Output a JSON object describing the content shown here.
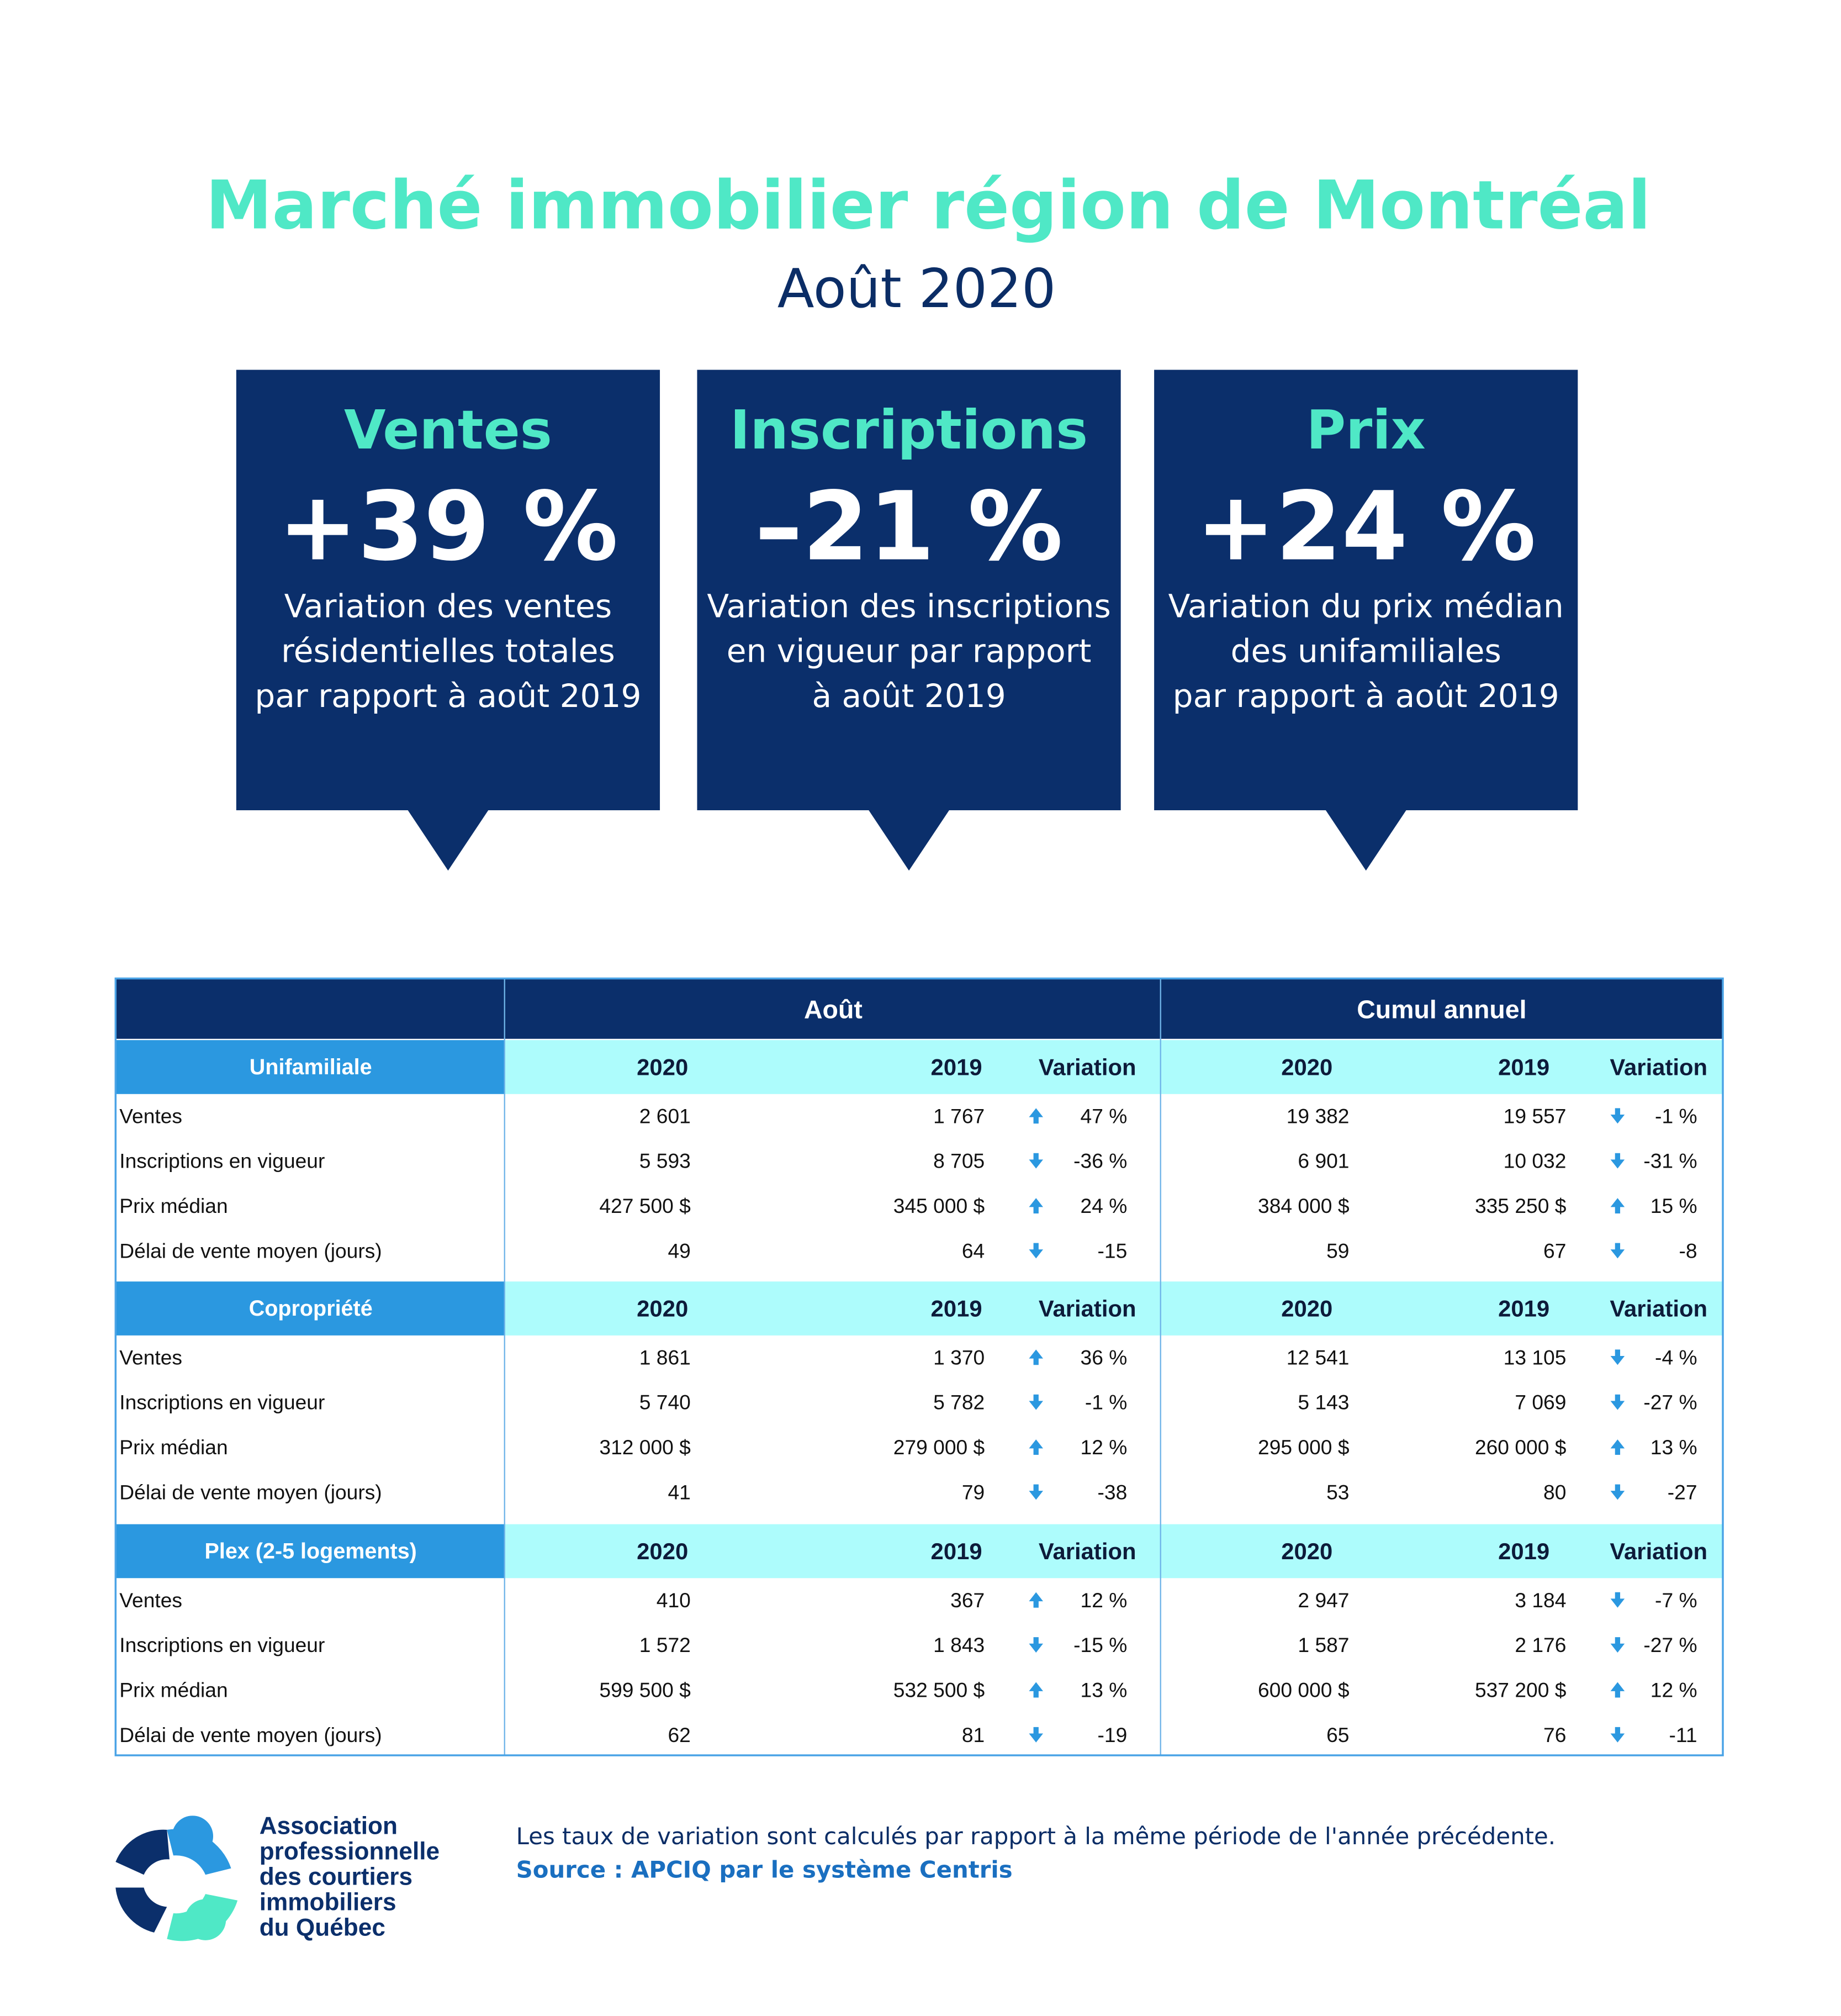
{
  "header": {
    "title": "Marché immobilier région de Montréal",
    "subtitle": "Août 2020"
  },
  "cards": [
    {
      "title": "Ventes",
      "value": "+39 %",
      "description": [
        "Variation des ventes",
        "résidentielles totales",
        "par rapport à août 2019"
      ]
    },
    {
      "title": "Inscriptions",
      "value": "–21 %",
      "description": [
        "Variation des inscriptions",
        "en vigueur par rapport",
        "à août 2019"
      ]
    },
    {
      "title": "Prix",
      "value": "+24 %",
      "description": [
        "Variation du prix médian",
        "des unifamiliales",
        "par rapport à août 2019"
      ]
    }
  ],
  "table": {
    "groups": [
      "Août",
      "Cumul annuel"
    ],
    "sections": [
      {
        "name": "Unifamiliale",
        "columns": [
          "2020",
          "2019",
          "Variation",
          "2020",
          "2019",
          "Variation"
        ],
        "rows": [
          {
            "label": "Ventes",
            "cells": [
              "2 601",
              "1 767",
              "47 %",
              "19 382",
              "19 557",
              "-1 %"
            ]
          },
          {
            "label": "Inscriptions en vigueur",
            "cells": [
              "5 593",
              "8 705",
              "-36 %",
              "6 901",
              "10 032",
              "-31 %"
            ]
          },
          {
            "label": "Prix médian",
            "cells": [
              "427 500 $",
              "345 000 $",
              "24 %",
              "384 000 $",
              "335 250 $",
              "15 %"
            ]
          },
          {
            "label": "Délai de vente moyen (jours)",
            "cells": [
              "49",
              "64",
              "-15",
              "59",
              "67",
              "-8"
            ]
          }
        ]
      },
      {
        "name": "Copropriété",
        "columns": [
          "2020",
          "2019",
          "Variation",
          "2020",
          "2019",
          "Variation"
        ],
        "rows": [
          {
            "label": "Ventes",
            "cells": [
              "1 861",
              "1 370",
              "36 %",
              "12 541",
              "13 105",
              "-4 %"
            ]
          },
          {
            "label": "Inscriptions en vigueur",
            "cells": [
              "5 740",
              "5 782",
              "-1 %",
              "5 143",
              "7 069",
              "-27 %"
            ]
          },
          {
            "label": "Prix médian",
            "cells": [
              "312 000 $",
              "279 000 $",
              "12 %",
              "295 000 $",
              "260 000 $",
              "13 %"
            ]
          },
          {
            "label": "Délai de vente moyen (jours)",
            "cells": [
              "41",
              "79",
              "-38",
              "53",
              "80",
              "-27"
            ]
          }
        ]
      },
      {
        "name": "Plex (2-5 logements)",
        "columns": [
          "2020",
          "2019",
          "Variation",
          "2020",
          "2019",
          "Variation"
        ],
        "rows": [
          {
            "label": "Ventes",
            "cells": [
              "410",
              "367",
              "12 %",
              "2 947",
              "3 184",
              "-7 %"
            ]
          },
          {
            "label": "Inscriptions en vigueur",
            "cells": [
              "1 572",
              "1 843",
              "-15 %",
              "1 587",
              "2 176",
              "-27 %"
            ]
          },
          {
            "label": "Prix médian",
            "cells": [
              "599 500 $",
              "532 500 $",
              "13 %",
              "600 000 $",
              "537 200 $",
              "12 %"
            ]
          },
          {
            "label": "Délai de vente moyen (jours)",
            "cells": [
              "62",
              "81",
              "-19",
              "65",
              "76",
              "-11"
            ]
          }
        ]
      }
    ]
  },
  "footer": {
    "logo": [
      "Association",
      "professionnelle",
      "des courtiers",
      "immobiliers",
      "du Québec"
    ],
    "note": "Les taux de variation sont calculés par rapport à la même période de l'année précédente.",
    "source": "Source : APCIQ par le système Centris"
  }
}
